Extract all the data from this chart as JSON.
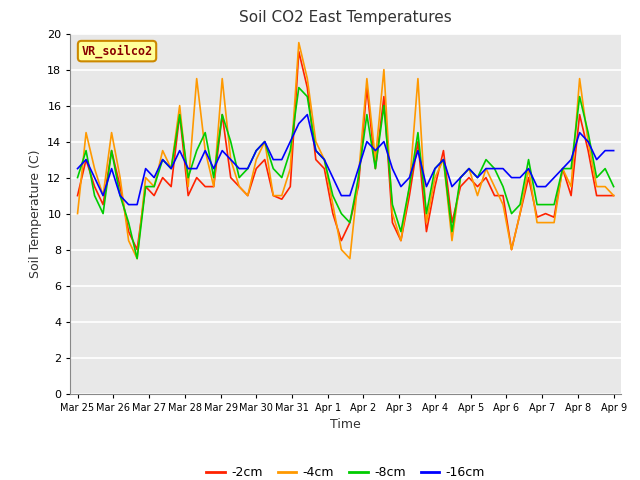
{
  "title": "Soil CO2 East Temperatures",
  "xlabel": "Time",
  "ylabel": "Soil Temperature (C)",
  "legend_label": "VR_soilco2",
  "ylim": [
    0,
    20
  ],
  "series_labels": [
    "-2cm",
    "-4cm",
    "-8cm",
    "-16cm"
  ],
  "series_colors": [
    "#ff2200",
    "#ff9900",
    "#00cc00",
    "#0000ff"
  ],
  "x_tick_labels": [
    "Mar 25",
    "Mar 26",
    "Mar 27",
    "Mar 28",
    "Mar 29",
    "Mar 30",
    "Mar 31",
    "Apr 1",
    "Apr 2",
    "Apr 3",
    "Apr 4",
    "Apr 5",
    "Apr 6",
    "Apr 7",
    "Apr 8",
    "Apr 9"
  ],
  "data_2cm": [
    11.0,
    13.0,
    11.5,
    10.5,
    13.5,
    11.5,
    9.0,
    8.0,
    11.5,
    11.0,
    12.0,
    11.5,
    15.5,
    11.0,
    12.0,
    11.5,
    11.5,
    15.5,
    12.0,
    11.5,
    11.0,
    12.5,
    13.0,
    11.0,
    10.8,
    11.5,
    19.0,
    17.0,
    13.0,
    12.5,
    10.0,
    8.5,
    9.5,
    11.5,
    17.0,
    12.5,
    16.5,
    9.5,
    8.5,
    11.0,
    14.0,
    9.0,
    11.5,
    13.5,
    9.5,
    11.5,
    12.0,
    11.5,
    12.0,
    11.0,
    11.0,
    8.0,
    10.0,
    12.0,
    9.8,
    10.0,
    9.8,
    12.5,
    11.0,
    15.5,
    13.5,
    11.0,
    11.0,
    11.0
  ],
  "data_4cm": [
    10.0,
    14.5,
    12.5,
    11.0,
    14.5,
    12.0,
    8.5,
    7.5,
    12.0,
    11.5,
    13.5,
    12.5,
    16.0,
    11.5,
    17.5,
    13.5,
    11.5,
    17.5,
    13.0,
    11.5,
    11.0,
    13.0,
    14.0,
    11.0,
    11.0,
    12.5,
    19.5,
    17.5,
    14.0,
    13.0,
    10.5,
    8.0,
    7.5,
    12.0,
    17.5,
    13.0,
    18.0,
    10.0,
    8.5,
    11.5,
    17.5,
    9.5,
    12.0,
    13.0,
    8.5,
    12.0,
    12.5,
    11.0,
    12.5,
    11.5,
    10.5,
    8.0,
    10.0,
    12.5,
    9.5,
    9.5,
    9.5,
    12.5,
    11.5,
    17.5,
    14.0,
    11.5,
    11.5,
    11.0
  ],
  "data_8cm": [
    12.0,
    13.5,
    11.0,
    10.0,
    13.5,
    11.0,
    9.5,
    7.5,
    11.5,
    11.5,
    13.0,
    12.5,
    15.5,
    12.0,
    13.5,
    14.5,
    12.0,
    15.5,
    14.0,
    12.0,
    12.5,
    13.5,
    14.0,
    12.5,
    12.0,
    13.5,
    17.0,
    16.5,
    13.5,
    13.0,
    11.0,
    10.0,
    9.5,
    12.0,
    15.5,
    12.5,
    16.0,
    10.5,
    9.0,
    11.5,
    14.5,
    10.0,
    12.5,
    13.0,
    9.0,
    12.0,
    12.5,
    12.0,
    13.0,
    12.5,
    11.5,
    10.0,
    10.5,
    13.0,
    10.5,
    10.5,
    10.5,
    12.5,
    12.5,
    16.5,
    14.5,
    12.0,
    12.5,
    11.5
  ],
  "data_16cm": [
    12.5,
    13.0,
    12.0,
    11.0,
    12.5,
    11.0,
    10.5,
    10.5,
    12.5,
    12.0,
    13.0,
    12.5,
    13.5,
    12.5,
    12.5,
    13.5,
    12.5,
    13.5,
    13.0,
    12.5,
    12.5,
    13.5,
    14.0,
    13.0,
    13.0,
    14.0,
    15.0,
    15.5,
    13.5,
    13.0,
    12.0,
    11.0,
    11.0,
    12.5,
    14.0,
    13.5,
    14.0,
    12.5,
    11.5,
    12.0,
    13.5,
    11.5,
    12.5,
    13.0,
    11.5,
    12.0,
    12.5,
    12.0,
    12.5,
    12.5,
    12.5,
    12.0,
    12.0,
    12.5,
    11.5,
    11.5,
    12.0,
    12.5,
    13.0,
    14.5,
    14.0,
    13.0,
    13.5,
    13.5
  ],
  "bg_color": "#ffffff",
  "plot_bg_color": "#e8e8e8",
  "grid_color": "#ffffff",
  "legend_box_color": "#ffff99",
  "legend_box_edge_color": "#cc8800"
}
